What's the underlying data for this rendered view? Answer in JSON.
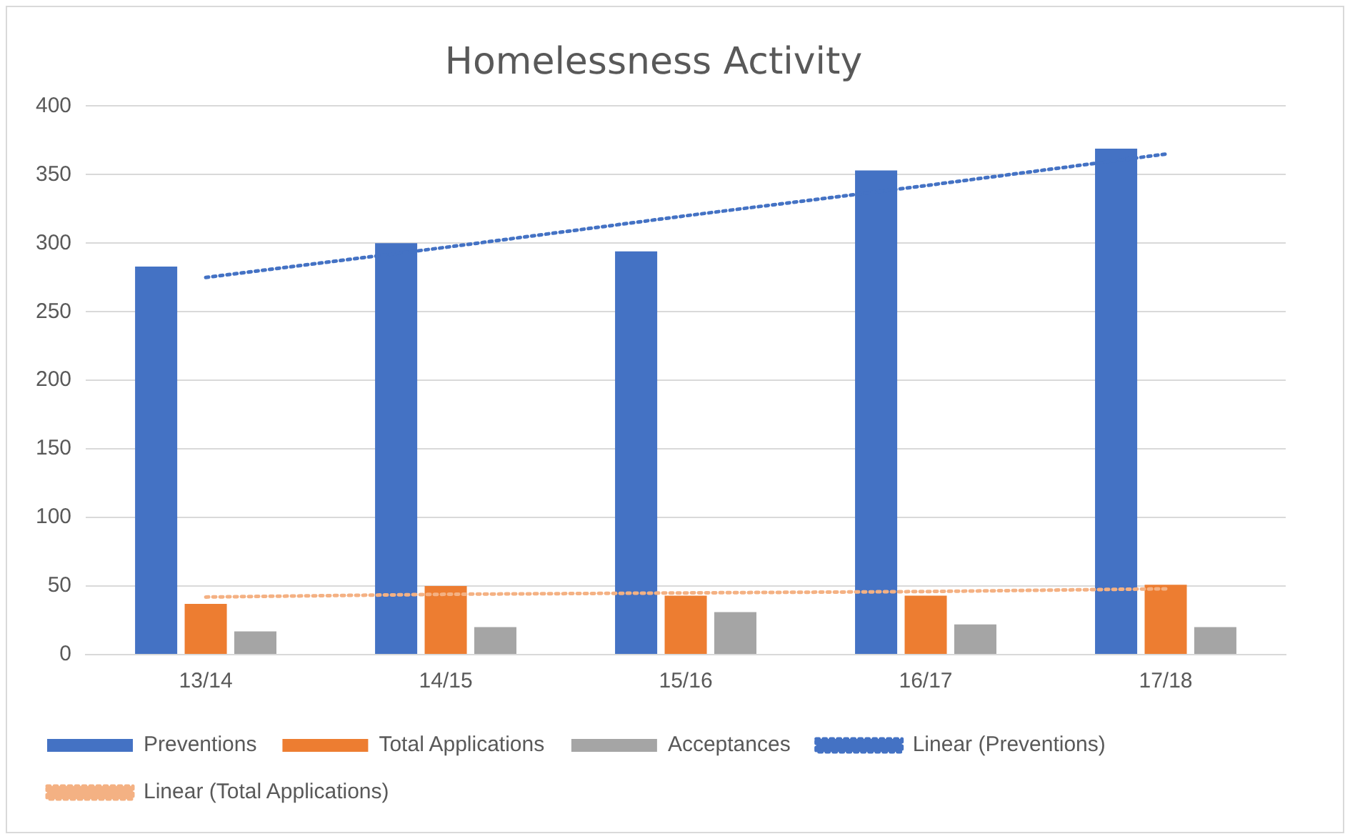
{
  "chart_data": {
    "type": "bar",
    "title": "Homelessness Activity",
    "categories": [
      "13/14",
      "14/15",
      "15/16",
      "16/17",
      "17/18"
    ],
    "series": [
      {
        "name": "Preventions",
        "color": "#4472c4",
        "values": [
          283,
          300,
          294,
          353,
          369
        ]
      },
      {
        "name": "Total Applications",
        "color": "#ed7d31",
        "values": [
          37,
          50,
          43,
          43,
          51
        ]
      },
      {
        "name": "Acceptances",
        "color": "#a5a5a5",
        "values": [
          17,
          20,
          31,
          22,
          20
        ]
      },
      {
        "name": "Linear (Preventions)",
        "type": "line",
        "line_style": "dotted",
        "color": "#4472c4",
        "values": [
          275,
          297,
          320,
          342,
          365
        ]
      },
      {
        "name": "Linear (Total Applications)",
        "type": "line",
        "line_style": "dotted",
        "color": "#f4b183",
        "values": [
          42,
          44,
          45,
          46,
          48
        ]
      }
    ],
    "ylim": [
      0,
      400
    ],
    "yticks": [
      0,
      50,
      100,
      150,
      200,
      250,
      300,
      350,
      400
    ],
    "grid": "y",
    "legend": "bottom",
    "marker": "none"
  }
}
